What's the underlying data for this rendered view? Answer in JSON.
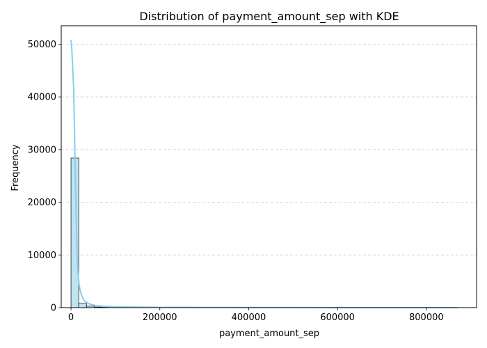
{
  "chart_data": {
    "type": "histogram",
    "title": "Distribution of payment_amount_sep with KDE",
    "xlabel": "payment_amount_sep",
    "ylabel": "Frequency",
    "xlim": [
      -22000,
      913000
    ],
    "ylim": [
      0,
      53500
    ],
    "x_ticks": [
      0,
      200000,
      400000,
      600000,
      800000
    ],
    "x_tick_labels": [
      "0",
      "200000",
      "400000",
      "600000",
      "800000"
    ],
    "y_ticks": [
      0,
      10000,
      20000,
      30000,
      40000,
      50000
    ],
    "y_tick_labels": [
      "0",
      "10000",
      "20000",
      "30000",
      "40000",
      "50000"
    ],
    "grid": {
      "axis": "y",
      "style": "dashed",
      "color": "#c8c8c8"
    },
    "bins": {
      "start": 0,
      "width": 17400,
      "counts": [
        28400,
        850,
        280,
        120,
        70,
        45,
        30,
        22,
        18,
        14,
        11,
        9,
        8,
        7,
        6,
        5,
        5,
        4,
        4,
        3,
        3,
        3,
        2,
        2,
        2,
        2,
        2,
        2,
        1,
        1,
        1,
        1,
        1,
        1,
        1,
        1,
        1,
        1,
        1,
        1,
        1,
        1,
        1,
        1,
        1,
        1,
        1,
        1,
        1,
        1
      ]
    },
    "kde": {
      "x": [
        0,
        2000,
        4000,
        6000,
        8000,
        10000,
        12000,
        14000,
        16000,
        18000,
        20000,
        24000,
        28000,
        32000,
        40000,
        50000,
        60000,
        80000,
        100000,
        150000,
        200000,
        300000,
        400000,
        500000,
        600000,
        700000,
        800000,
        870000
      ],
      "y": [
        50800,
        48800,
        45200,
        41500,
        33000,
        24000,
        15800,
        9800,
        6500,
        4600,
        3500,
        2300,
        1600,
        1150,
        750,
        500,
        360,
        230,
        160,
        100,
        70,
        45,
        35,
        28,
        22,
        18,
        15,
        12
      ]
    },
    "colors": {
      "bar_fill": "#bfe4f0",
      "bar_edge": "#000000",
      "kde_line": "#87ceeb",
      "grid": "#c8c8c8",
      "axis": "#000000"
    }
  }
}
